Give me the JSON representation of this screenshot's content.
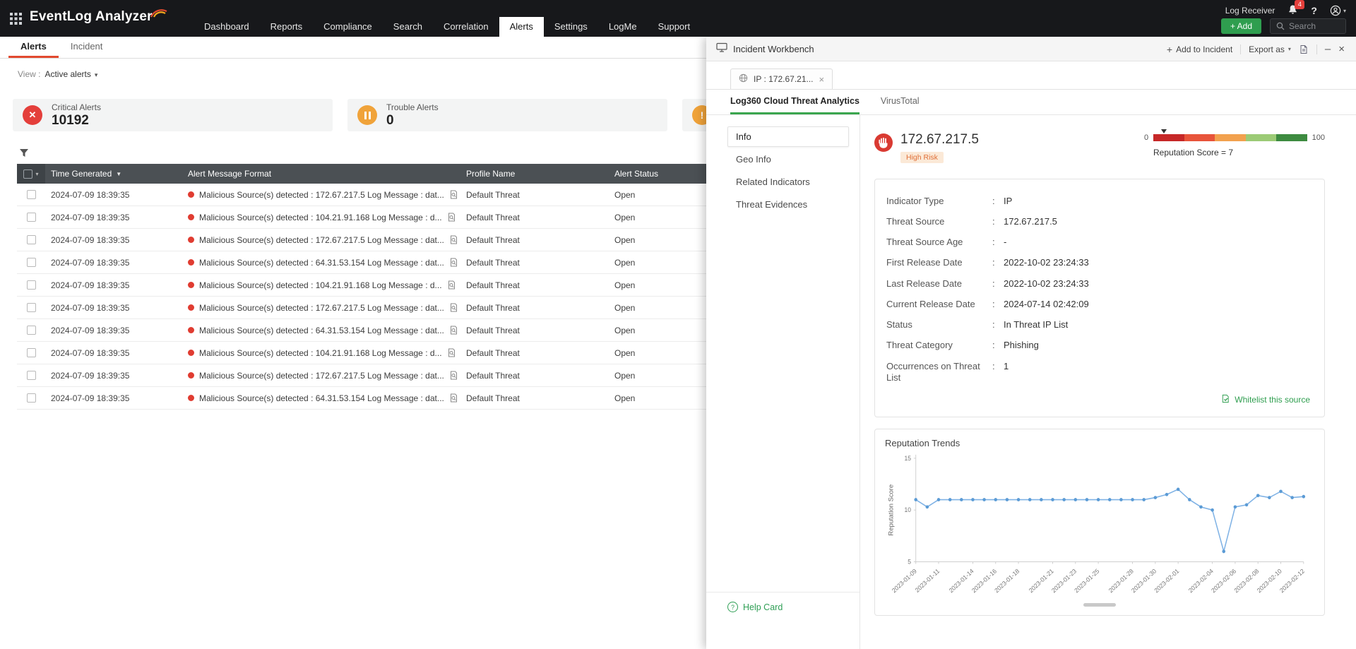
{
  "topbar": {
    "logo_text": "EventLog Analyzer",
    "nav_items": [
      "Dashboard",
      "Reports",
      "Compliance",
      "Search",
      "Correlation",
      "Alerts",
      "Settings",
      "LogMe",
      "Support"
    ],
    "active_nav": "Alerts",
    "log_receiver_label": "Log Receiver",
    "notification_count": "4",
    "add_button_label": "+ Add",
    "search_placeholder": "Search"
  },
  "page_tabs": {
    "items": [
      "Alerts",
      "Incident"
    ],
    "active": "Alerts"
  },
  "view_bar": {
    "label": "View :",
    "selected": "Active alerts"
  },
  "stat_cards": [
    {
      "label": "Critical Alerts",
      "value": "10192",
      "icon": "critical-x-icon",
      "color": "#e43f3b"
    },
    {
      "label": "Trouble Alerts",
      "value": "0",
      "icon": "pause-icon",
      "color": "#f0a33a"
    },
    {
      "label": "",
      "value": "",
      "icon": "warning-icon",
      "color": "#f0a33a"
    }
  ],
  "alerts_table": {
    "columns": [
      "Time Generated",
      "Alert Message Format",
      "Profile Name",
      "Alert Status"
    ],
    "rows": [
      {
        "time": "2024-07-09 18:39:35",
        "message": "Malicious Source(s) detected : 172.67.217.5 Log Message : dat...",
        "profile": "Default Threat",
        "status": "Open"
      },
      {
        "time": "2024-07-09 18:39:35",
        "message": "Malicious Source(s) detected : 104.21.91.168 Log Message : d...",
        "profile": "Default Threat",
        "status": "Open"
      },
      {
        "time": "2024-07-09 18:39:35",
        "message": "Malicious Source(s) detected : 172.67.217.5 Log Message : dat...",
        "profile": "Default Threat",
        "status": "Open"
      },
      {
        "time": "2024-07-09 18:39:35",
        "message": "Malicious Source(s) detected : 64.31.53.154 Log Message : dat...",
        "profile": "Default Threat",
        "status": "Open"
      },
      {
        "time": "2024-07-09 18:39:35",
        "message": "Malicious Source(s) detected : 104.21.91.168 Log Message : d...",
        "profile": "Default Threat",
        "status": "Open"
      },
      {
        "time": "2024-07-09 18:39:35",
        "message": "Malicious Source(s) detected : 172.67.217.5 Log Message : dat...",
        "profile": "Default Threat",
        "status": "Open"
      },
      {
        "time": "2024-07-09 18:39:35",
        "message": "Malicious Source(s) detected : 64.31.53.154 Log Message : dat...",
        "profile": "Default Threat",
        "status": "Open"
      },
      {
        "time": "2024-07-09 18:39:35",
        "message": "Malicious Source(s) detected : 104.21.91.168 Log Message : d...",
        "profile": "Default Threat",
        "status": "Open"
      },
      {
        "time": "2024-07-09 18:39:35",
        "message": "Malicious Source(s) detected : 172.67.217.5 Log Message : dat...",
        "profile": "Default Threat",
        "status": "Open"
      },
      {
        "time": "2024-07-09 18:39:35",
        "message": "Malicious Source(s) detected : 64.31.53.154 Log Message : dat...",
        "profile": "Default Threat",
        "status": "Open"
      }
    ]
  },
  "workbench": {
    "title": "Incident Workbench",
    "add_to_incident_label": "Add to Incident",
    "export_as_label": "Export as",
    "tab_label": "IP : 172.67.21...",
    "subtabs": [
      "Log360 Cloud Threat Analytics",
      "VirusTotal"
    ],
    "active_subtab": "Log360 Cloud Threat Analytics",
    "sidebar_items": [
      "Info",
      "Geo Info",
      "Related Indicators",
      "Threat Evidences"
    ],
    "active_sidebar_item": "Info",
    "help_card_label": "Help Card",
    "indicator": {
      "ip": "172.67.217.5",
      "risk_label": "High Risk",
      "scale_min": "0",
      "scale_max": "100",
      "score_text": "Reputation Score = 7",
      "score_percent": 7,
      "scale_colors": [
        "#c62828",
        "#e8543a",
        "#f2a14e",
        "#9ccb76",
        "#3d8b40"
      ]
    },
    "details": [
      {
        "label": "Indicator Type",
        "value": "IP"
      },
      {
        "label": "Threat Source",
        "value": "172.67.217.5"
      },
      {
        "label": "Threat Source Age",
        "value": "-"
      },
      {
        "label": "First Release Date",
        "value": "2022-10-02 23:24:33"
      },
      {
        "label": "Last Release Date",
        "value": "2022-10-02 23:24:33"
      },
      {
        "label": "Current Release Date",
        "value": "2024-07-14 02:42:09"
      },
      {
        "label": "Status",
        "value": "In Threat IP List"
      },
      {
        "label": "Threat Category",
        "value": "Phishing"
      },
      {
        "label": "Occurrences on Threat List",
        "value": "1"
      }
    ],
    "whitelist_label": "Whitelist this source",
    "trends_title": "Reputation Trends"
  },
  "chart_data": {
    "type": "line",
    "title": "Reputation Trends",
    "xlabel": "",
    "ylabel": "Reputation Score",
    "ylim": [
      5,
      15
    ],
    "yticks": [
      5,
      10,
      15
    ],
    "grid": false,
    "legend": false,
    "line_color": "#7fb2e5",
    "point_color": "#5b9bd5",
    "x": [
      "2023-01-09",
      "2023-01-10",
      "2023-01-11",
      "2023-01-12",
      "2023-01-13",
      "2023-01-14",
      "2023-01-15",
      "2023-01-16",
      "2023-01-17",
      "2023-01-18",
      "2023-01-19",
      "2023-01-20",
      "2023-01-21",
      "2023-01-22",
      "2023-01-23",
      "2023-01-24",
      "2023-01-25",
      "2023-01-26",
      "2023-01-27",
      "2023-01-28",
      "2023-01-29",
      "2023-01-30",
      "2023-01-31",
      "2023-02-01",
      "2023-02-02",
      "2023-02-03",
      "2023-02-04",
      "2023-02-05",
      "2023-02-06",
      "2023-02-07",
      "2023-02-08",
      "2023-02-09",
      "2023-02-10",
      "2023-02-11",
      "2023-02-12"
    ],
    "values": [
      11,
      10.3,
      11,
      11,
      11,
      11,
      11,
      11,
      11,
      11,
      11,
      11,
      11,
      11,
      11,
      11,
      11,
      11,
      11,
      11,
      11,
      11.2,
      11.5,
      12,
      11,
      10.3,
      10,
      6,
      10.3,
      10.5,
      11.4,
      11.2,
      11.8,
      11.2,
      11.3
    ],
    "xtick_labels": [
      "2023-01-09",
      "2023-01-11",
      "2023-01-14",
      "2023-01-16",
      "2023-01-18",
      "2023-01-21",
      "2023-01-23",
      "2023-01-25",
      "2023-01-28",
      "2023-01-30",
      "2023-02-01",
      "2023-02-04",
      "2023-02-06",
      "2023-02-08",
      "2023-02-10",
      "2023-02-12"
    ]
  }
}
